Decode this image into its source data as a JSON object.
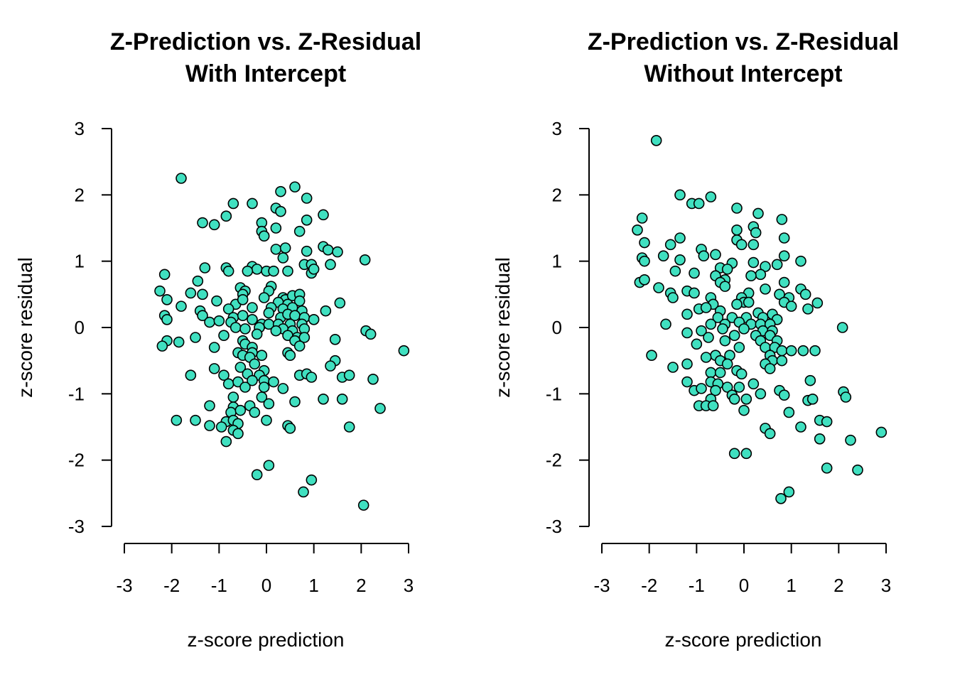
{
  "colors": {
    "point_fill": "#40E0C0",
    "point_stroke": "#000000",
    "axis": "#000000"
  },
  "chart_data": [
    {
      "type": "scatter",
      "title": [
        "Z-Prediction vs. Z-Residual",
        "With Intercept"
      ],
      "xlabel": "z-score prediction",
      "ylabel": "z-score residual",
      "xlim": [
        -3,
        3
      ],
      "ylim": [
        -3,
        3
      ],
      "xticks": [
        "-3",
        "-2",
        "-1",
        "0",
        "1",
        "2",
        "3"
      ],
      "yticks": [
        "-3",
        "-2",
        "-1",
        "0",
        "1",
        "2",
        "3"
      ],
      "grid": false,
      "legend": "none",
      "points": [
        [
          -1.8,
          2.25
        ],
        [
          0.6,
          2.12
        ],
        [
          0.3,
          2.05
        ],
        [
          0.85,
          1.95
        ],
        [
          -0.7,
          1.87
        ],
        [
          -0.3,
          1.87
        ],
        [
          0.2,
          1.8
        ],
        [
          0.3,
          1.75
        ],
        [
          -0.85,
          1.68
        ],
        [
          1.2,
          1.7
        ],
        [
          0.85,
          1.62
        ],
        [
          -1.35,
          1.58
        ],
        [
          -1.1,
          1.55
        ],
        [
          -0.1,
          1.58
        ],
        [
          0.2,
          1.5
        ],
        [
          0.7,
          1.45
        ],
        [
          -0.1,
          1.45
        ],
        [
          -0.05,
          1.38
        ],
        [
          1.2,
          1.22
        ],
        [
          0.2,
          1.18
        ],
        [
          0.4,
          1.2
        ],
        [
          0.85,
          1.15
        ],
        [
          1.3,
          1.17
        ],
        [
          1.5,
          1.14
        ],
        [
          0.35,
          1.05
        ],
        [
          2.08,
          1.02
        ],
        [
          0.8,
          0.95
        ],
        [
          0.95,
          0.95
        ],
        [
          1.35,
          0.95
        ],
        [
          -1.3,
          0.9
        ],
        [
          -0.85,
          0.9
        ],
        [
          -0.3,
          0.92
        ],
        [
          -0.2,
          0.88
        ],
        [
          -0.4,
          0.85
        ],
        [
          0.0,
          0.85
        ],
        [
          0.15,
          0.85
        ],
        [
          0.45,
          0.85
        ],
        [
          0.95,
          0.82
        ],
        [
          1.0,
          0.88
        ],
        [
          -0.8,
          0.85
        ],
        [
          -2.15,
          0.8
        ],
        [
          -1.45,
          0.7
        ],
        [
          -0.55,
          0.6
        ],
        [
          -0.45,
          0.55
        ],
        [
          0.1,
          0.62
        ],
        [
          0.05,
          0.55
        ],
        [
          -2.25,
          0.55
        ],
        [
          -1.6,
          0.52
        ],
        [
          -1.35,
          0.5
        ],
        [
          -0.5,
          0.5
        ],
        [
          -0.05,
          0.45
        ],
        [
          0.35,
          0.45
        ],
        [
          0.4,
          0.42
        ],
        [
          0.55,
          0.48
        ],
        [
          0.7,
          0.5
        ],
        [
          -2.1,
          0.42
        ],
        [
          -1.05,
          0.4
        ],
        [
          -0.65,
          0.35
        ],
        [
          -0.5,
          0.42
        ],
        [
          0.25,
          0.38
        ],
        [
          0.45,
          0.35
        ],
        [
          0.7,
          0.4
        ],
        [
          -1.8,
          0.32
        ],
        [
          -1.4,
          0.25
        ],
        [
          -0.8,
          0.28
        ],
        [
          -0.3,
          0.3
        ],
        [
          0.1,
          0.3
        ],
        [
          0.35,
          0.28
        ],
        [
          0.55,
          0.3
        ],
        [
          0.75,
          0.25
        ],
        [
          1.25,
          0.25
        ],
        [
          1.55,
          0.37
        ],
        [
          -2.15,
          0.18
        ],
        [
          -1.35,
          0.18
        ],
        [
          -0.7,
          0.15
        ],
        [
          -0.5,
          0.18
        ],
        [
          -0.3,
          0.12
        ],
        [
          0.05,
          0.22
        ],
        [
          0.3,
          0.15
        ],
        [
          0.45,
          0.2
        ],
        [
          0.6,
          0.18
        ],
        [
          0.8,
          0.15
        ],
        [
          1.0,
          0.12
        ],
        [
          -2.1,
          0.12
        ],
        [
          -1.2,
          0.08
        ],
        [
          -1.0,
          0.1
        ],
        [
          -0.75,
          0.08
        ],
        [
          -0.1,
          0.05
        ],
        [
          0.05,
          0.05
        ],
        [
          0.25,
          0.05
        ],
        [
          0.5,
          0.05
        ],
        [
          0.75,
          0.05
        ],
        [
          -0.65,
          0.0
        ],
        [
          -0.45,
          -0.02
        ],
        [
          -0.15,
          0.0
        ],
        [
          0.35,
          -0.02
        ],
        [
          0.55,
          -0.05
        ],
        [
          0.8,
          -0.02
        ],
        [
          2.1,
          -0.05
        ],
        [
          -0.9,
          -0.12
        ],
        [
          -0.2,
          -0.1
        ],
        [
          0.2,
          -0.05
        ],
        [
          0.45,
          -0.12
        ],
        [
          0.65,
          -0.15
        ],
        [
          2.2,
          -0.1
        ],
        [
          -1.5,
          -0.15
        ],
        [
          -0.5,
          -0.2
        ],
        [
          0.6,
          -0.2
        ],
        [
          0.8,
          -0.15
        ],
        [
          1.45,
          -0.18
        ],
        [
          -2.1,
          -0.2
        ],
        [
          -2.2,
          -0.28
        ],
        [
          -1.85,
          -0.22
        ],
        [
          -1.1,
          -0.3
        ],
        [
          -0.45,
          -0.25
        ],
        [
          -0.3,
          -0.3
        ],
        [
          0.7,
          -0.28
        ],
        [
          2.9,
          -0.35
        ],
        [
          -0.6,
          -0.38
        ],
        [
          -0.3,
          -0.38
        ],
        [
          0.45,
          -0.38
        ],
        [
          -0.5,
          -0.42
        ],
        [
          -0.35,
          -0.45
        ],
        [
          -0.1,
          -0.42
        ],
        [
          0.5,
          -0.42
        ],
        [
          1.45,
          -0.5
        ],
        [
          -0.25,
          -0.55
        ],
        [
          1.35,
          -0.58
        ],
        [
          -1.1,
          -0.62
        ],
        [
          -0.55,
          -0.6
        ],
        [
          -0.05,
          -0.65
        ],
        [
          -1.6,
          -0.72
        ],
        [
          -0.9,
          -0.72
        ],
        [
          -0.4,
          -0.7
        ],
        [
          -0.15,
          -0.72
        ],
        [
          0.7,
          -0.72
        ],
        [
          0.85,
          -0.7
        ],
        [
          0.95,
          -0.75
        ],
        [
          1.6,
          -0.75
        ],
        [
          1.75,
          -0.72
        ],
        [
          -0.8,
          -0.85
        ],
        [
          -0.6,
          -0.82
        ],
        [
          -0.3,
          -0.8
        ],
        [
          -0.05,
          -0.8
        ],
        [
          0.15,
          -0.82
        ],
        [
          2.25,
          -0.78
        ],
        [
          -0.45,
          -0.9
        ],
        [
          -0.05,
          -0.9
        ],
        [
          0.35,
          -0.92
        ],
        [
          -0.7,
          -1.05
        ],
        [
          -0.1,
          -1.05
        ],
        [
          0.6,
          -1.12
        ],
        [
          1.2,
          -1.08
        ],
        [
          1.6,
          -1.08
        ],
        [
          -1.2,
          -1.18
        ],
        [
          -0.7,
          -1.2
        ],
        [
          -0.35,
          -1.18
        ],
        [
          0.05,
          -1.15
        ],
        [
          -0.75,
          -1.28
        ],
        [
          -0.55,
          -1.25
        ],
        [
          -0.25,
          -1.28
        ],
        [
          2.4,
          -1.22
        ],
        [
          -1.9,
          -1.4
        ],
        [
          -1.5,
          -1.4
        ],
        [
          -0.85,
          -1.42
        ],
        [
          -0.7,
          -1.4
        ],
        [
          -0.6,
          -1.45
        ],
        [
          0.0,
          -1.4
        ],
        [
          -1.2,
          -1.48
        ],
        [
          -0.95,
          -1.5
        ],
        [
          0.45,
          -1.48
        ],
        [
          0.5,
          -1.52
        ],
        [
          1.75,
          -1.5
        ],
        [
          -0.7,
          -1.55
        ],
        [
          -0.6,
          -1.6
        ],
        [
          -0.85,
          -1.72
        ],
        [
          -0.2,
          -2.22
        ],
        [
          0.05,
          -2.08
        ],
        [
          0.95,
          -2.3
        ],
        [
          0.78,
          -2.48
        ],
        [
          2.05,
          -2.68
        ]
      ]
    },
    {
      "type": "scatter",
      "title": [
        "Z-Prediction vs. Z-Residual",
        "Without Intercept"
      ],
      "xlabel": "z-score prediction",
      "ylabel": "z-score residual",
      "xlim": [
        -3,
        3
      ],
      "ylim": [
        -3,
        3
      ],
      "xticks": [
        "-3",
        "-2",
        "-1",
        "0",
        "1",
        "2",
        "3"
      ],
      "yticks": [
        "-3",
        "-2",
        "-1",
        "0",
        "1",
        "2",
        "3"
      ],
      "grid": false,
      "legend": "none",
      "points": [
        [
          -1.85,
          2.82
        ],
        [
          -1.35,
          2.0
        ],
        [
          -0.7,
          1.97
        ],
        [
          -1.1,
          1.87
        ],
        [
          -0.95,
          1.87
        ],
        [
          -0.15,
          1.8
        ],
        [
          0.3,
          1.72
        ],
        [
          -2.15,
          1.65
        ],
        [
          0.8,
          1.63
        ],
        [
          0.2,
          1.52
        ],
        [
          -2.25,
          1.47
        ],
        [
          -0.15,
          1.47
        ],
        [
          0.25,
          1.43
        ],
        [
          -1.35,
          1.35
        ],
        [
          0.85,
          1.35
        ],
        [
          -0.15,
          1.32
        ],
        [
          -2.1,
          1.28
        ],
        [
          -1.55,
          1.25
        ],
        [
          -0.05,
          1.25
        ],
        [
          0.2,
          1.25
        ],
        [
          -0.9,
          1.18
        ],
        [
          -1.7,
          1.08
        ],
        [
          -0.85,
          1.08
        ],
        [
          0.85,
          1.08
        ],
        [
          -2.15,
          1.05
        ],
        [
          -1.35,
          1.02
        ],
        [
          -2.1,
          1.0
        ],
        [
          -0.6,
          1.1
        ],
        [
          0.2,
          0.98
        ],
        [
          0.7,
          0.95
        ],
        [
          1.2,
          1.0
        ],
        [
          -0.25,
          0.97
        ],
        [
          0.45,
          0.92
        ],
        [
          -0.5,
          0.9
        ],
        [
          -0.35,
          0.88
        ],
        [
          -1.45,
          0.85
        ],
        [
          -1.05,
          0.82
        ],
        [
          0.35,
          0.8
        ],
        [
          -0.6,
          0.78
        ],
        [
          0.15,
          0.78
        ],
        [
          -0.4,
          0.72
        ],
        [
          -2.2,
          0.68
        ],
        [
          -2.1,
          0.72
        ],
        [
          -0.5,
          0.68
        ],
        [
          0.85,
          0.68
        ],
        [
          -1.8,
          0.6
        ],
        [
          -0.4,
          0.62
        ],
        [
          0.45,
          0.58
        ],
        [
          1.2,
          0.58
        ],
        [
          -1.55,
          0.52
        ],
        [
          -1.2,
          0.55
        ],
        [
          -1.05,
          0.52
        ],
        [
          0.1,
          0.52
        ],
        [
          0.75,
          0.5
        ],
        [
          1.3,
          0.5
        ],
        [
          -1.5,
          0.45
        ],
        [
          -0.7,
          0.45
        ],
        [
          -0.05,
          0.45
        ],
        [
          0.95,
          0.45
        ],
        [
          0.0,
          0.38
        ],
        [
          0.1,
          0.38
        ],
        [
          0.85,
          0.38
        ],
        [
          1.55,
          0.37
        ],
        [
          -0.65,
          0.35
        ],
        [
          -0.15,
          0.35
        ],
        [
          1.0,
          0.32
        ],
        [
          -1.2,
          0.2
        ],
        [
          -0.95,
          0.28
        ],
        [
          -0.8,
          0.3
        ],
        [
          -0.5,
          0.25
        ],
        [
          0.3,
          0.22
        ],
        [
          0.6,
          0.2
        ],
        [
          1.35,
          0.28
        ],
        [
          -0.55,
          0.15
        ],
        [
          -0.25,
          0.15
        ],
        [
          0.05,
          0.15
        ],
        [
          0.4,
          0.15
        ],
        [
          0.7,
          0.12
        ],
        [
          -1.65,
          0.05
        ],
        [
          -0.7,
          0.05
        ],
        [
          -0.4,
          0.05
        ],
        [
          -0.1,
          0.08
        ],
        [
          0.15,
          0.05
        ],
        [
          0.35,
          0.05
        ],
        [
          0.55,
          0.05
        ],
        [
          2.08,
          0.0
        ],
        [
          -0.9,
          -0.05
        ],
        [
          -0.45,
          -0.02
        ],
        [
          0.0,
          -0.02
        ],
        [
          0.4,
          -0.05
        ],
        [
          0.6,
          -0.05
        ],
        [
          -1.2,
          -0.08
        ],
        [
          -0.2,
          -0.12
        ],
        [
          0.25,
          -0.12
        ],
        [
          0.55,
          -0.12
        ],
        [
          -0.75,
          -0.15
        ],
        [
          -0.4,
          -0.2
        ],
        [
          0.35,
          -0.2
        ],
        [
          0.7,
          -0.2
        ],
        [
          -1.0,
          -0.25
        ],
        [
          -0.1,
          -0.3
        ],
        [
          0.45,
          -0.3
        ],
        [
          0.65,
          -0.3
        ],
        [
          0.8,
          -0.35
        ],
        [
          1.0,
          -0.35
        ],
        [
          1.25,
          -0.35
        ],
        [
          1.5,
          -0.35
        ],
        [
          -1.95,
          -0.42
        ],
        [
          -0.6,
          -0.42
        ],
        [
          -0.3,
          -0.42
        ],
        [
          0.55,
          -0.42
        ],
        [
          -0.8,
          -0.45
        ],
        [
          -0.5,
          -0.5
        ],
        [
          0.6,
          -0.5
        ],
        [
          0.8,
          -0.5
        ],
        [
          -1.2,
          -0.55
        ],
        [
          -0.35,
          -0.55
        ],
        [
          0.45,
          -0.55
        ],
        [
          -1.5,
          -0.6
        ],
        [
          0.55,
          -0.62
        ],
        [
          -0.15,
          -0.65
        ],
        [
          -0.7,
          -0.68
        ],
        [
          -0.5,
          -0.68
        ],
        [
          -0.05,
          -0.7
        ],
        [
          1.4,
          -0.8
        ],
        [
          -1.2,
          -0.82
        ],
        [
          -0.7,
          -0.82
        ],
        [
          -0.55,
          -0.85
        ],
        [
          0.2,
          -0.85
        ],
        [
          -0.35,
          -0.9
        ],
        [
          -0.1,
          -0.9
        ],
        [
          -1.05,
          -0.95
        ],
        [
          -0.9,
          -0.92
        ],
        [
          -0.6,
          -0.95
        ],
        [
          0.75,
          -0.95
        ],
        [
          2.1,
          -0.97
        ],
        [
          -0.25,
          -1.02
        ],
        [
          0.35,
          -1.0
        ],
        [
          0.85,
          -1.02
        ],
        [
          -0.7,
          -1.08
        ],
        [
          -0.2,
          -1.08
        ],
        [
          0.05,
          -1.08
        ],
        [
          1.35,
          -1.1
        ],
        [
          1.45,
          -1.08
        ],
        [
          2.15,
          -1.05
        ],
        [
          -0.95,
          -1.18
        ],
        [
          -0.8,
          -1.18
        ],
        [
          -0.65,
          -1.18
        ],
        [
          0.0,
          -1.25
        ],
        [
          0.95,
          -1.28
        ],
        [
          1.6,
          -1.4
        ],
        [
          1.75,
          -1.42
        ],
        [
          0.45,
          -1.52
        ],
        [
          1.2,
          -1.5
        ],
        [
          0.55,
          -1.6
        ],
        [
          1.6,
          -1.68
        ],
        [
          2.9,
          -1.58
        ],
        [
          2.25,
          -1.7
        ],
        [
          -0.2,
          -1.9
        ],
        [
          0.05,
          -1.9
        ],
        [
          1.75,
          -2.12
        ],
        [
          2.4,
          -2.15
        ],
        [
          0.95,
          -2.48
        ],
        [
          0.78,
          -2.58
        ]
      ]
    }
  ]
}
